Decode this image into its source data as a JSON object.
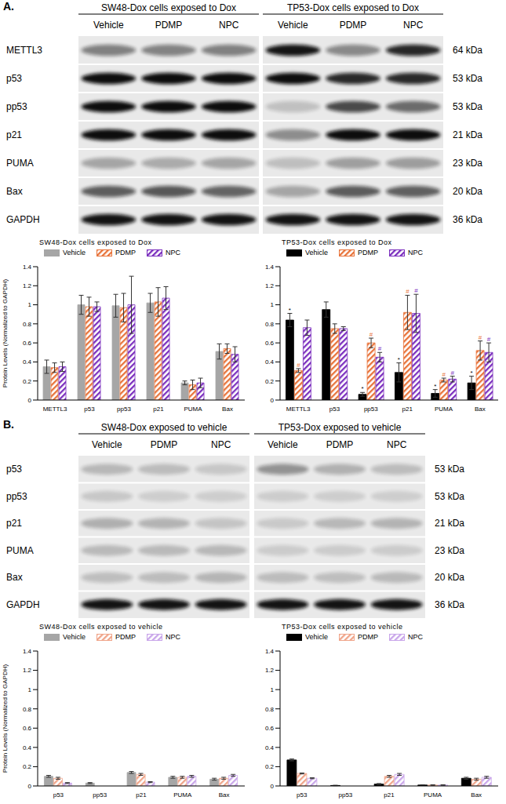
{
  "panel_labels": [
    "A.",
    "B."
  ],
  "blots": [
    {
      "groups": [
        {
          "title": "SW48-Dox cells exposed to Dox",
          "lanes": [
            "Vehicle",
            "PDMP",
            "NPC"
          ]
        },
        {
          "title": "TP53-Dox cells exposed to Dox",
          "lanes": [
            "Vehicle",
            "PDMP",
            "NPC"
          ]
        }
      ],
      "rows": [
        {
          "protein": "METTL3",
          "size": "64 kDa"
        },
        {
          "protein": "p53",
          "size": "53 kDa"
        },
        {
          "protein": "pp53",
          "size": "53 kDa"
        },
        {
          "protein": "p21",
          "size": "21 kDa"
        },
        {
          "protein": "PUMA",
          "size": "23 kDa"
        },
        {
          "protein": "Bax",
          "size": "20 kDa"
        },
        {
          "protein": "GAPDH",
          "size": "36 kDa"
        }
      ]
    },
    {
      "groups": [
        {
          "title": "SW48-Dox exposed to vehicle",
          "lanes": [
            "Vehicle",
            "PDMP",
            "NPC"
          ]
        },
        {
          "title": "TP53-Dox exposed to vehicle",
          "lanes": [
            "Vehicle",
            "PDMP",
            "NPC"
          ]
        }
      ],
      "rows": [
        {
          "protein": "p53",
          "size": "53 kDa"
        },
        {
          "protein": "pp53",
          "size": "53 kDa"
        },
        {
          "protein": "p21",
          "size": "21 kDa"
        },
        {
          "protein": "PUMA",
          "size": "23 kDa"
        },
        {
          "protein": "Bax",
          "size": "20 kDa"
        },
        {
          "protein": "GAPDH",
          "size": "36 kDa"
        }
      ]
    }
  ],
  "chart_data": [
    {
      "type": "bar",
      "title": "SW48-Dox cells exposed to Dox",
      "y_label": "Protein Levels (Normalized to GAPDH)",
      "categories": [
        "METTL3",
        "p53",
        "pp53",
        "p21",
        "PUMA",
        "Bax"
      ],
      "ylim": [
        0,
        1.4
      ],
      "yticks": [
        0,
        0.2,
        0.4,
        0.6,
        0.8,
        1,
        1.2,
        1.4
      ],
      "legend": "top",
      "series": [
        {
          "name": "Vehicle",
          "color": "#a6a6a6",
          "values": [
            0.35,
            1.0,
            0.99,
            1.02,
            0.18,
            0.51
          ],
          "errors": [
            0.07,
            0.1,
            0.12,
            0.1,
            0.02,
            0.08
          ]
        },
        {
          "name": "PDMP",
          "color": "#e8743b",
          "values": [
            0.34,
            0.98,
            0.97,
            1.03,
            0.16,
            0.54
          ],
          "errors": [
            0.05,
            0.1,
            0.15,
            0.15,
            0.05,
            0.05
          ]
        },
        {
          "name": "NPC",
          "color": "#7b2fbe",
          "values": [
            0.35,
            0.98,
            1.0,
            1.07,
            0.18,
            0.48
          ],
          "errors": [
            0.05,
            0.05,
            0.3,
            0.12,
            0.05,
            0.08
          ]
        }
      ]
    },
    {
      "type": "bar",
      "title": "TP53-Dox cells exposed to Dox",
      "categories": [
        "METTL3",
        "p53",
        "pp53",
        "p21",
        "PUMA",
        "Bax"
      ],
      "ylim": [
        0,
        1.4
      ],
      "yticks": [
        0,
        0.2,
        0.4,
        0.6,
        0.8,
        1,
        1.2,
        1.4
      ],
      "legend": "top",
      "series": [
        {
          "name": "Vehicle",
          "color": "#000000",
          "values": [
            0.84,
            0.95,
            0.06,
            0.29,
            0.07,
            0.18
          ],
          "errors": [
            0.07,
            0.08,
            0.02,
            0.1,
            0.04,
            0.07
          ],
          "annotations": [
            "*",
            null,
            "*",
            "*",
            "*",
            "*"
          ]
        },
        {
          "name": "PDMP",
          "color": "#e8743b",
          "values": [
            0.31,
            0.75,
            0.6,
            0.92,
            0.21,
            0.52
          ],
          "errors": [
            0.02,
            0.05,
            0.05,
            0.18,
            0.02,
            0.1
          ],
          "annotations": [
            "#",
            null,
            "#",
            "#",
            "#",
            "#"
          ]
        },
        {
          "name": "NPC",
          "color": "#7b2fbe",
          "values": [
            0.76,
            0.75,
            0.45,
            0.91,
            0.22,
            0.5
          ],
          "errors": [
            0.08,
            0.02,
            0.05,
            0.2,
            0.03,
            0.1
          ],
          "annotations": [
            null,
            null,
            "#",
            "#",
            "#",
            "#"
          ]
        }
      ]
    },
    {
      "type": "bar",
      "title": "SW48-Dox cells exposed to vehicle",
      "y_label": "Protein Levels (Normalized to GAPDH)",
      "categories": [
        "p53",
        "pp53",
        "p21",
        "PUMA",
        "Bax"
      ],
      "ylim": [
        0,
        1.4
      ],
      "yticks": [
        0,
        0.2,
        0.4,
        0.6,
        0.8,
        1,
        1.2,
        1.4
      ],
      "legend": "top",
      "series": [
        {
          "name": "Vehicle",
          "color": "#a6a6a6",
          "values": [
            0.1,
            0.03,
            0.14,
            0.09,
            0.07
          ],
          "errors": [
            0.01,
            0.005,
            0.01,
            0.01,
            0.01
          ]
        },
        {
          "name": "PDMP",
          "color": "#f0a58a",
          "values": [
            0.08,
            0.0,
            0.12,
            0.09,
            0.08
          ],
          "errors": [
            0.01,
            0,
            0.01,
            0.01,
            0.01
          ]
        },
        {
          "name": "NPC",
          "color": "#c9a6ea",
          "values": [
            0.03,
            0.0,
            0.04,
            0.1,
            0.11
          ],
          "errors": [
            0.005,
            0,
            0.005,
            0.01,
            0.01
          ]
        }
      ]
    },
    {
      "type": "bar",
      "title": "TP53-Dox cells exposed to vehicle",
      "categories": [
        "p53",
        "pp53",
        "p21",
        "PUMA",
        "Bax"
      ],
      "ylim": [
        0,
        1.4
      ],
      "yticks": [
        0,
        0.2,
        0.4,
        0.6,
        0.8,
        1,
        1.2,
        1.4
      ],
      "legend": "top",
      "series": [
        {
          "name": "Vehicle",
          "color": "#000000",
          "values": [
            0.27,
            0.005,
            0.02,
            0.01,
            0.08
          ],
          "errors": [
            0.01,
            0.002,
            0.005,
            0.002,
            0.01
          ]
        },
        {
          "name": "PDMP",
          "color": "#f0a58a",
          "values": [
            0.13,
            0.0,
            0.1,
            0.01,
            0.07
          ],
          "errors": [
            0.005,
            0,
            0.01,
            0.002,
            0.01
          ]
        },
        {
          "name": "NPC",
          "color": "#c9a6ea",
          "values": [
            0.08,
            0.0,
            0.12,
            0.01,
            0.09
          ],
          "errors": [
            0.005,
            0,
            0.01,
            0.002,
            0.01
          ]
        }
      ]
    }
  ]
}
